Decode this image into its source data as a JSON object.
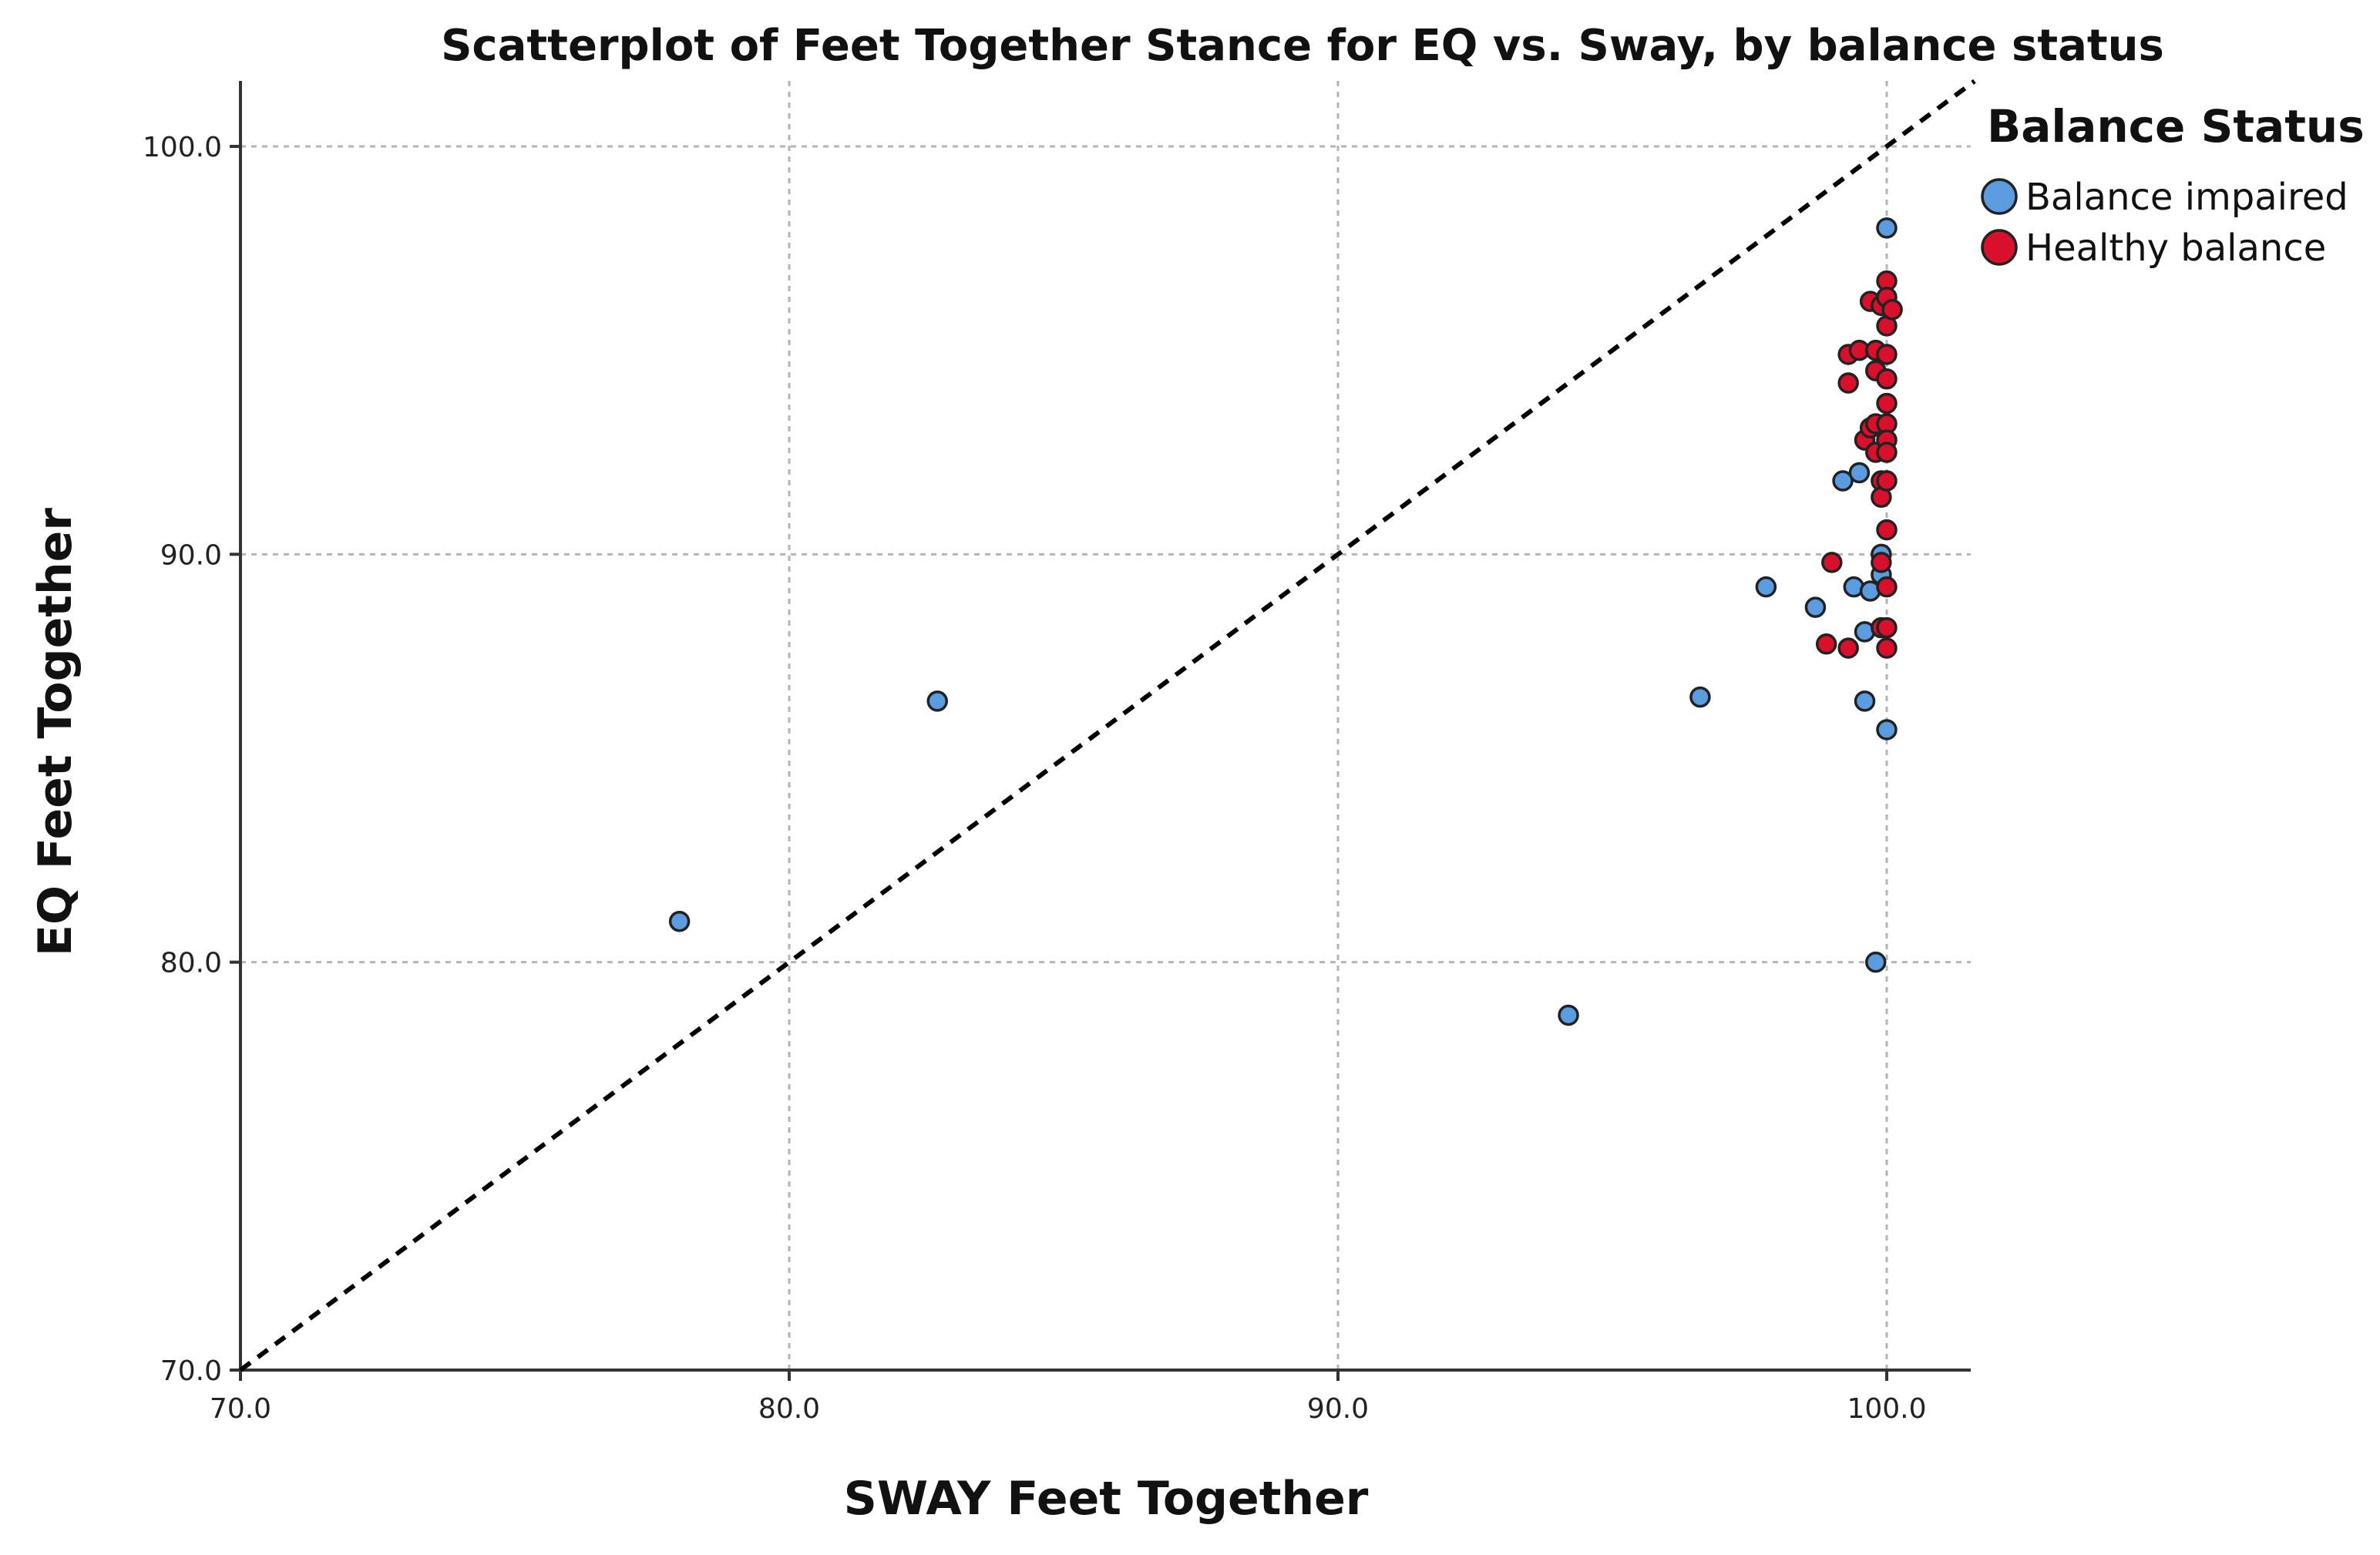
{
  "chart_data": {
    "type": "scatter",
    "title": "Scatterplot of Feet Together Stance for EQ vs. Sway, by balance status",
    "xlabel": "SWAY Feet Together",
    "ylabel": "EQ Feet Together",
    "xlim": [
      70,
      101.5
    ],
    "ylim": [
      70,
      101.6
    ],
    "xticks": [
      70,
      80,
      90,
      100
    ],
    "yticks": [
      70,
      80,
      90,
      100
    ],
    "xtick_labels": [
      "70.0",
      "80.0",
      "90.0",
      "100.0"
    ],
    "ytick_labels": [
      "70.0",
      "80.0",
      "90.0",
      "100.0"
    ],
    "grid": true,
    "reference_line": "y = x",
    "legend": {
      "title": "Balance Status",
      "position": "top-right, outside plot"
    },
    "series": [
      {
        "name": "Balance impaired",
        "color": "#5b9bdf",
        "points": [
          [
            78.0,
            81.0
          ],
          [
            82.7,
            86.4
          ],
          [
            94.2,
            78.7
          ],
          [
            96.6,
            86.5
          ],
          [
            97.8,
            89.2
          ],
          [
            98.7,
            88.7
          ],
          [
            99.2,
            91.8
          ],
          [
            99.4,
            89.2
          ],
          [
            99.5,
            92.0
          ],
          [
            99.6,
            88.1
          ],
          [
            99.6,
            86.4
          ],
          [
            99.7,
            89.1
          ],
          [
            99.8,
            80.0
          ],
          [
            99.9,
            90.0
          ],
          [
            99.9,
            89.5
          ],
          [
            100.0,
            98.0
          ],
          [
            100.0,
            85.7
          ]
        ]
      },
      {
        "name": "Healthy balance",
        "color": "#d8102c",
        "points": [
          [
            98.9,
            87.8
          ],
          [
            99.0,
            89.8
          ],
          [
            99.3,
            87.7
          ],
          [
            99.3,
            94.9
          ],
          [
            99.3,
            94.2
          ],
          [
            99.5,
            95.0
          ],
          [
            99.6,
            92.8
          ],
          [
            99.7,
            96.2
          ],
          [
            99.7,
            93.1
          ],
          [
            99.8,
            95.0
          ],
          [
            99.8,
            94.5
          ],
          [
            99.8,
            93.2
          ],
          [
            99.8,
            92.5
          ],
          [
            99.9,
            91.8
          ],
          [
            99.9,
            91.4
          ],
          [
            99.9,
            89.8
          ],
          [
            99.9,
            88.2
          ],
          [
            99.9,
            96.1
          ],
          [
            100.0,
            96.7
          ],
          [
            100.0,
            96.3
          ],
          [
            100.0,
            95.6
          ],
          [
            100.0,
            94.9
          ],
          [
            100.0,
            94.3
          ],
          [
            100.0,
            93.7
          ],
          [
            100.0,
            93.2
          ],
          [
            100.0,
            92.8
          ],
          [
            100.0,
            92.5
          ],
          [
            100.0,
            91.8
          ],
          [
            100.0,
            90.6
          ],
          [
            100.0,
            89.2
          ],
          [
            100.0,
            88.2
          ],
          [
            100.0,
            87.7
          ],
          [
            100.1,
            96.0
          ]
        ]
      }
    ]
  }
}
